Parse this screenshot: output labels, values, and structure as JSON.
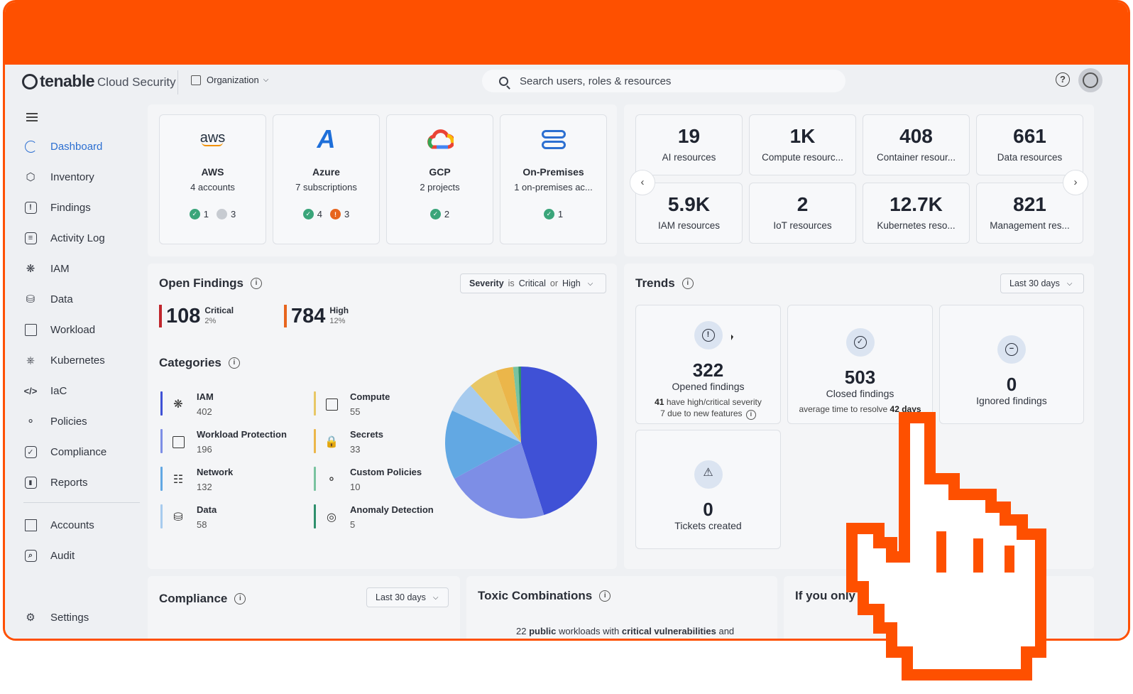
{
  "header": {
    "brand": "tenable",
    "product": "Cloud Security",
    "org_label": "Organization",
    "search_placeholder": "Search users, roles & resources",
    "help": "?"
  },
  "sidebar": {
    "items": [
      {
        "label": "Dashboard",
        "icon": "dashboard-icon"
      },
      {
        "label": "Inventory",
        "icon": "cube-icon"
      },
      {
        "label": "Findings",
        "icon": "alert-square-icon"
      },
      {
        "label": "Activity Log",
        "icon": "activity-log-icon"
      },
      {
        "label": "IAM",
        "icon": "fingerprint-icon"
      },
      {
        "label": "Data",
        "icon": "database-icon"
      },
      {
        "label": "Workload",
        "icon": "chip-icon"
      },
      {
        "label": "Kubernetes",
        "icon": "helm-icon"
      },
      {
        "label": "IaC",
        "icon": "code-icon"
      },
      {
        "label": "Policies",
        "icon": "shield-icon"
      },
      {
        "label": "Compliance",
        "icon": "checkbox-icon"
      },
      {
        "label": "Reports",
        "icon": "chart-icon"
      },
      {
        "label": "Accounts",
        "icon": "building-icon"
      },
      {
        "label": "Audit",
        "icon": "audit-icon"
      },
      {
        "label": "Settings",
        "icon": "gear-icon"
      }
    ]
  },
  "clouds": [
    {
      "name": "AWS",
      "sub": "4 accounts",
      "ok": "1",
      "other": "3",
      "other_type": "grey",
      "logo": "aws"
    },
    {
      "name": "Azure",
      "sub": "7 subscriptions",
      "ok": "4",
      "other": "3",
      "other_type": "warn",
      "logo": "A"
    },
    {
      "name": "GCP",
      "sub": "2 projects",
      "ok": "2",
      "other": "",
      "other_type": "",
      "logo": "gcp"
    },
    {
      "name": "On-Premises",
      "sub": "1 on-premises ac...",
      "ok": "1",
      "other": "",
      "other_type": "",
      "logo": "server"
    }
  ],
  "resources": [
    {
      "value": "19",
      "label": "AI resources"
    },
    {
      "value": "1K",
      "label": "Compute resourc..."
    },
    {
      "value": "408",
      "label": "Container resour..."
    },
    {
      "value": "661",
      "label": "Data resources"
    },
    {
      "value": "5.9K",
      "label": "IAM resources"
    },
    {
      "value": "2",
      "label": "IoT resources"
    },
    {
      "value": "12.7K",
      "label": "Kubernetes reso..."
    },
    {
      "value": "821",
      "label": "Management res..."
    }
  ],
  "open_findings": {
    "title": "Open Findings",
    "filter": {
      "field": "Severity",
      "op": "is",
      "v1": "Critical",
      "or": "or",
      "v2": "High"
    },
    "critical": {
      "value": "108",
      "label": "Critical",
      "pct": "2%",
      "color": "#c0262d"
    },
    "high": {
      "value": "784",
      "label": "High",
      "pct": "12%",
      "color": "#e7651e"
    },
    "categories_title": "Categories",
    "categories": [
      {
        "name": "IAM",
        "count": "402",
        "icon": "fingerprint-icon",
        "color": "#3f51d6"
      },
      {
        "name": "Workload Protection",
        "count": "196",
        "icon": "chip-icon",
        "color": "#7d8ee6"
      },
      {
        "name": "Network",
        "count": "132",
        "icon": "network-icon",
        "color": "#62a8e3"
      },
      {
        "name": "Data",
        "count": "58",
        "icon": "database-icon",
        "color": "#a7cbee"
      },
      {
        "name": "Compute",
        "count": "55",
        "icon": "chip-icon",
        "color": "#e8c766"
      },
      {
        "name": "Secrets",
        "count": "33",
        "icon": "lock-icon",
        "color": "#ebb64a"
      },
      {
        "name": "Custom Policies",
        "count": "10",
        "icon": "shield-icon",
        "color": "#79c3a0"
      },
      {
        "name": "Anomaly Detection",
        "count": "5",
        "icon": "radar-icon",
        "color": "#2e8f6c"
      }
    ]
  },
  "chart_data": {
    "type": "pie",
    "categories": [
      "IAM",
      "Workload Protection",
      "Network",
      "Data",
      "Compute",
      "Secrets",
      "Custom Policies",
      "Anomaly Detection"
    ],
    "values": [
      402,
      196,
      132,
      58,
      55,
      33,
      10,
      5
    ],
    "colors": [
      "#3f51d6",
      "#7d8ee6",
      "#62a8e3",
      "#a7cbee",
      "#e8c766",
      "#ebb64a",
      "#79c3a0",
      "#2e8f6c"
    ]
  },
  "trends": {
    "title": "Trends",
    "range": "Last 30 days",
    "items": [
      {
        "value": "322",
        "label": "Opened findings",
        "sub1_num": "41",
        "sub1_rest": "have high/critical severity",
        "sub2": "7 due to new features",
        "icon": "!"
      },
      {
        "value": "503",
        "label": "Closed findings",
        "sub1_rest": "average time to resolve",
        "sub1_num": "42 days",
        "icon": "✓"
      },
      {
        "value": "0",
        "label": "Ignored findings",
        "icon": "−"
      },
      {
        "value": "0",
        "label": "Tickets created",
        "icon": "⚠"
      }
    ]
  },
  "compliance": {
    "title": "Compliance",
    "range": "Last 30 days"
  },
  "toxic": {
    "title": "Toxic Combinations",
    "line_pre": "22",
    "line_b1": "public",
    "line_mid": "workloads with",
    "line_b2": "critical vulnerabilities",
    "line_post": "and"
  },
  "if_only": {
    "title": "If you only have"
  }
}
